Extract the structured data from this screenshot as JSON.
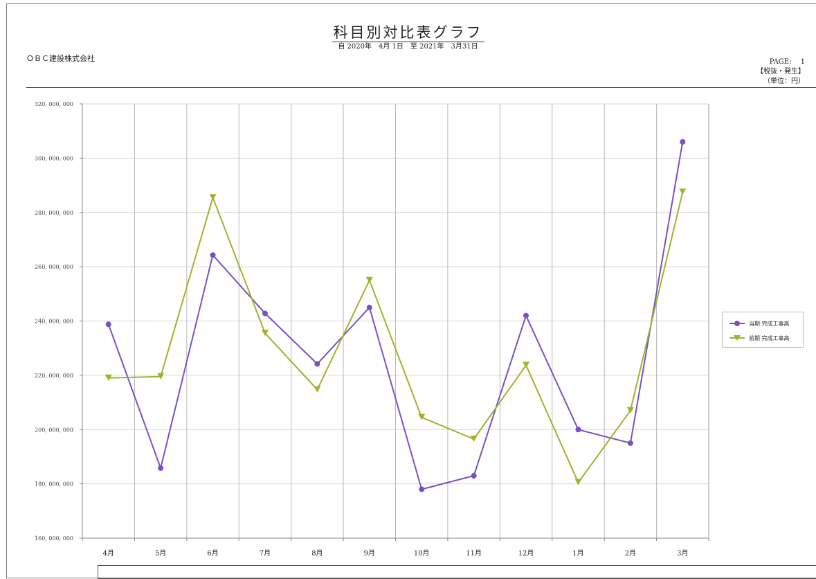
{
  "header": {
    "title": "科目別対比表グラフ",
    "period": "自 2020年　4月 1日　至 2021年　3月31日",
    "company": "ＯＢＣ建設株式会社",
    "page_label": "PAGE:　 1",
    "tax_label": "【税抜・発生】",
    "unit_label": "（単位：円）"
  },
  "legend": {
    "items": [
      {
        "label": "当期 完成工事高",
        "color": "#7b4fc4",
        "marker": "circle"
      },
      {
        "label": "前期 完成工事高",
        "color": "#9ab52c",
        "marker": "triangle-down"
      }
    ]
  },
  "chart_data": {
    "type": "line",
    "title": "",
    "xlabel": "",
    "ylabel": "",
    "categories": [
      "4月",
      "5月",
      "6月",
      "7月",
      "8月",
      "9月",
      "10月",
      "11月",
      "12月",
      "1月",
      "2月",
      "3月"
    ],
    "ylim": [
      160000000,
      320000000
    ],
    "yticks": [
      {
        "value": 160000000,
        "label": "160, 000, 000"
      },
      {
        "value": 180000000,
        "label": "180, 000, 000"
      },
      {
        "value": 200000000,
        "label": "200, 000, 000"
      },
      {
        "value": 220000000,
        "label": "220, 000, 000"
      },
      {
        "value": 240000000,
        "label": "240, 000, 000"
      },
      {
        "value": 260000000,
        "label": "260, 000, 000"
      },
      {
        "value": 280000000,
        "label": "280, 000, 000"
      },
      {
        "value": 300000000,
        "label": "300, 000, 000"
      },
      {
        "value": 320000000,
        "label": "320, 000, 000"
      }
    ],
    "grid": true,
    "legend_position": "right",
    "series": [
      {
        "name": "当期 完成工事高",
        "color": "#7b4fc4",
        "marker": "circle",
        "values": [
          238800000,
          185800000,
          264300000,
          242800000,
          224200000,
          245000000,
          178000000,
          183000000,
          242000000,
          200000000,
          195000000,
          306000000
        ]
      },
      {
        "name": "前期 完成工事高",
        "color": "#9ab52c",
        "marker": "triangle-down",
        "values": [
          219000000,
          219500000,
          285500000,
          235500000,
          214700000,
          255000000,
          204500000,
          196500000,
          223700000,
          180500000,
          207000000,
          287500000
        ]
      }
    ]
  }
}
